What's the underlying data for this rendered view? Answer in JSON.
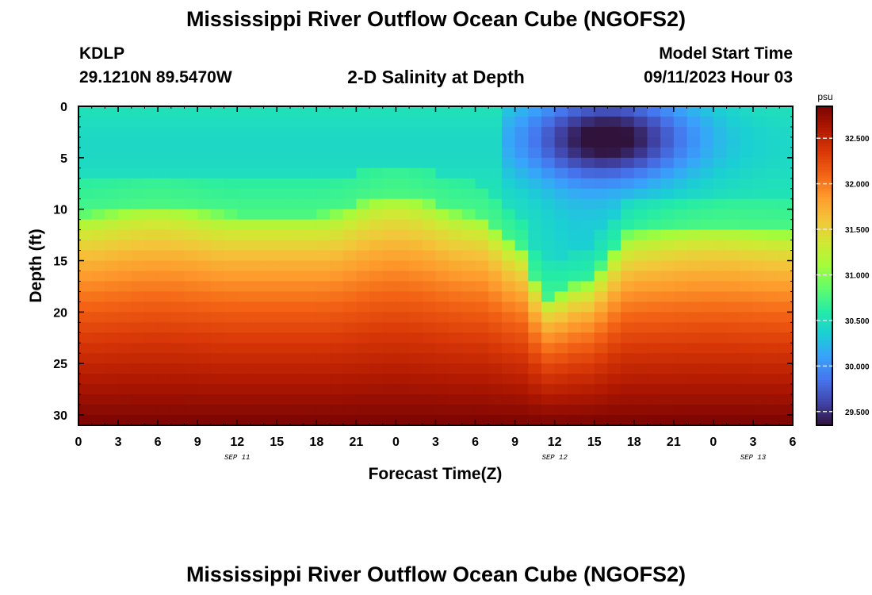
{
  "header": {
    "title": "Mississippi River Outflow Ocean Cube (NGOFS2)",
    "station_id": "KDLP",
    "station_coords": "29.1210N  89.5470W",
    "subtitle": "2-D Salinity at Depth",
    "model_start_label": "Model Start Time",
    "model_start_time": "09/11/2023 Hour 03"
  },
  "footer": {
    "title": "Mississippi River Outflow Ocean Cube (NGOFS2)"
  },
  "chart_data": {
    "type": "heatmap",
    "title": "2-D Salinity at Depth",
    "xlabel": "Forecast Time(Z)",
    "ylabel": "Depth (ft)",
    "x_ticks": [
      "0",
      "3",
      "6",
      "9",
      "12",
      "15",
      "18",
      "21",
      "0",
      "3",
      "6",
      "9",
      "12",
      "15",
      "18",
      "21",
      "0",
      "3",
      "6"
    ],
    "x_range_hours": [
      0,
      54
    ],
    "date_labels": [
      {
        "label": "SEP 11",
        "hour": 12
      },
      {
        "label": "SEP 12",
        "hour": 36
      },
      {
        "label": "SEP 13",
        "hour": 51
      }
    ],
    "y_ticks": [
      0,
      5,
      10,
      15,
      20,
      25,
      30
    ],
    "y_range": [
      0,
      31
    ],
    "y_inverted": true,
    "colorbar": {
      "unit": "psu",
      "min": 29.35,
      "max": 32.85,
      "ticks": [
        "32.500",
        "32.000",
        "31.500",
        "31.000",
        "30.500",
        "30.000",
        "29.500"
      ],
      "colormap": [
        "#30123b",
        "#4145ab",
        "#4675ed",
        "#39a2fc",
        "#1bcfd4",
        "#24eca6",
        "#61fc6c",
        "#a4fc3b",
        "#d1e834",
        "#f3c63a",
        "#fe9b2d",
        "#f36315",
        "#d93807",
        "#b11901",
        "#7a0403"
      ]
    },
    "field_description_knots": {
      "halocline_top_depth_ft": [
        {
          "hour": 0,
          "value": 10.5
        },
        {
          "hour": 6,
          "value": 9.5
        },
        {
          "hour": 12,
          "value": 10.5
        },
        {
          "hour": 18,
          "value": 10.5
        },
        {
          "hour": 24,
          "value": 8.5
        },
        {
          "hour": 30,
          "value": 10.5
        },
        {
          "hour": 33,
          "value": 13
        },
        {
          "hour": 35.5,
          "value": 18.5
        },
        {
          "hour": 38,
          "value": 17
        },
        {
          "hour": 42,
          "value": 12
        },
        {
          "hour": 48,
          "value": 11.5
        },
        {
          "hour": 54,
          "value": 12
        }
      ],
      "surface_fresh_lens": {
        "hour_center": 40,
        "depth_center_ft": 3,
        "min_psu": 29.4
      }
    }
  }
}
